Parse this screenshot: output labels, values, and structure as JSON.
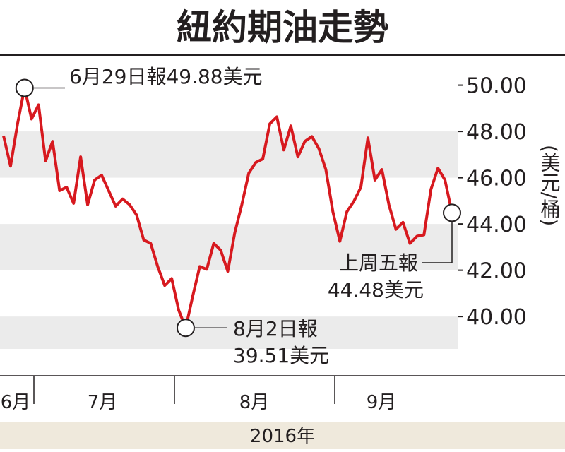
{
  "chart_data": {
    "type": "line",
    "title": "紐約期油走勢",
    "y_label": "(美元/桶)",
    "x_label": "2016年",
    "month_labels": [
      "6月",
      "7月",
      "8月",
      "9月"
    ],
    "categories": [
      null,
      null,
      null,
      null,
      null,
      null,
      null,
      null,
      null,
      null,
      null,
      null,
      null,
      null,
      null,
      null,
      null,
      null,
      null,
      null,
      null,
      null,
      null,
      null,
      null,
      null,
      null,
      null,
      null,
      null,
      null,
      null,
      null,
      null,
      null,
      null,
      null,
      null,
      null,
      null,
      null,
      null,
      null,
      null,
      null,
      null,
      null,
      null,
      null,
      null,
      null,
      null,
      null,
      null,
      null,
      null,
      null,
      null,
      null,
      null,
      null,
      null,
      null,
      null,
      null
    ],
    "series": [
      {
        "color": "#d7191f",
        "values": [
          47.81,
          46.5,
          48.33,
          49.88,
          48.54,
          49.15,
          46.72,
          47.57,
          45.44,
          45.59,
          44.89,
          46.9,
          44.83,
          45.9,
          46.11,
          45.44,
          44.77,
          45.08,
          44.83,
          44.38,
          43.31,
          43.16,
          42.16,
          41.34,
          41.64,
          40.27,
          39.51,
          40.88,
          42.16,
          42.04,
          43.16,
          42.86,
          41.95,
          43.62,
          44.83,
          46.2,
          46.66,
          46.81,
          48.33,
          48.63,
          47.2,
          48.24,
          46.9,
          47.57,
          47.78,
          47.26,
          46.35,
          44.53,
          43.25,
          44.53,
          44.98,
          45.59,
          47.72,
          45.9,
          46.35,
          44.83,
          43.77,
          44.07,
          43.16,
          43.47,
          43.53,
          45.5,
          46.41,
          45.9,
          44.48
        ]
      }
    ],
    "ylim": [
      38.6,
      51.3
    ],
    "yticks": [
      {
        "value": 40,
        "label": "40.00"
      },
      {
        "value": 42,
        "label": "42.00"
      },
      {
        "value": 44,
        "label": "44.00"
      },
      {
        "value": 46,
        "label": "46.00"
      },
      {
        "value": 48,
        "label": "48.00"
      },
      {
        "value": 50,
        "label": "50.00"
      }
    ],
    "annotations": [
      {
        "index": 3,
        "lines": [
          "6月29日報49.88美元"
        ]
      },
      {
        "index": 26,
        "lines": [
          "8月2日報",
          "39.51美元"
        ]
      },
      {
        "index": 64,
        "lines": [
          "上周五報",
          "44.48美元"
        ]
      }
    ]
  }
}
